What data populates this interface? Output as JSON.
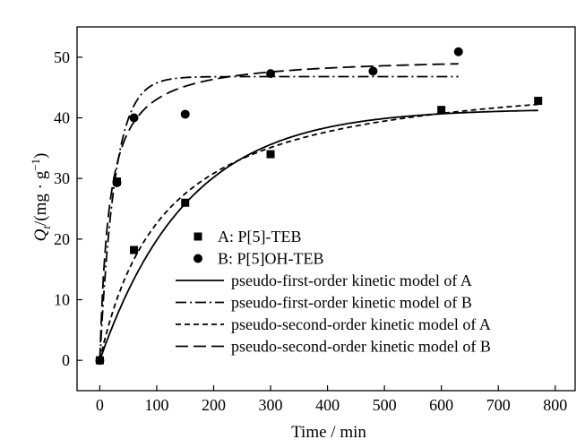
{
  "chart_data": {
    "type": "scatter",
    "title": "",
    "xlabel": "Time / min",
    "ylabel_parts": {
      "q": "Q",
      "sub": "t",
      "unit_open": "/(mg · g",
      "sup": "−1",
      "unit_close": ")"
    },
    "xlim": [
      -40,
      835
    ],
    "ylim": [
      -5,
      55
    ],
    "xticks": [
      0,
      100,
      200,
      300,
      400,
      500,
      600,
      700,
      800
    ],
    "yticks": [
      0,
      10,
      20,
      30,
      40,
      50
    ],
    "grid": false,
    "legend_position": "center-right",
    "series": [
      {
        "name": "A: P[5]-TEB",
        "kind": "points",
        "marker": "square",
        "x": [
          0,
          30,
          60,
          150,
          300,
          600,
          770
        ],
        "y": [
          0,
          29.5,
          18.2,
          26,
          34,
          41.3,
          42.8
        ]
      },
      {
        "name": "B: P[5]OH-TEB",
        "kind": "points",
        "marker": "circle",
        "x": [
          0,
          30,
          60,
          150,
          300,
          480,
          630
        ],
        "y": [
          0,
          29.3,
          40,
          40.6,
          47.3,
          47.7,
          50.9
        ]
      },
      {
        "name": "pseudo-first-order kinetic model of A",
        "kind": "curve",
        "model": "first-order",
        "qe": 41.5,
        "k": 0.0065,
        "x_range": [
          0,
          770
        ],
        "dash": "solid"
      },
      {
        "name": "pseudo-first-order kinetic model of B",
        "kind": "curve",
        "model": "first-order",
        "qe": 46.8,
        "k": 0.038,
        "x_range": [
          0,
          630
        ],
        "dash": "dash-dot"
      },
      {
        "name": "pseudo-second-order kinetic model of A",
        "kind": "curve",
        "model": "second-order",
        "qe": 48.5,
        "k": 0.00018,
        "x_range": [
          0,
          770
        ],
        "dash": "short-dash"
      },
      {
        "name": "pseudo-second-order kinetic model of B",
        "kind": "curve",
        "model": "second-order",
        "qe": 50.2,
        "k": 0.0012,
        "x_range": [
          0,
          630
        ],
        "dash": "long-dash"
      }
    ]
  }
}
